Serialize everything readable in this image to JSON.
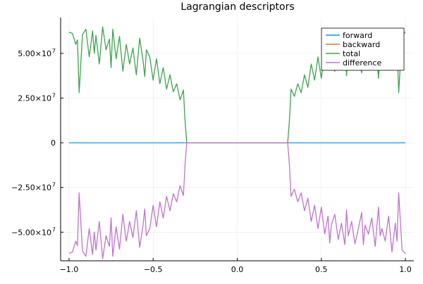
{
  "chart_data": {
    "type": "line",
    "title": "Lagrangian descriptors",
    "xlabel": "",
    "ylabel": "",
    "xlim": [
      -1.05,
      1.05
    ],
    "ylim": [
      -66000000,
      70000000
    ],
    "grid": true,
    "legend_position": "top-right",
    "x_ticks": [
      {
        "value": -1.0,
        "label": "−1.0"
      },
      {
        "value": -0.5,
        "label": "−0.5"
      },
      {
        "value": 0.0,
        "label": "0.0"
      },
      {
        "value": 0.5,
        "label": "0.5"
      },
      {
        "value": 1.0,
        "label": "1.0"
      }
    ],
    "y_ticks": [
      {
        "value": 50000000,
        "base": "5.00×10",
        "exp": "7"
      },
      {
        "value": 25000000,
        "base": "2.50×10",
        "exp": "7"
      },
      {
        "value": 0,
        "base": "0",
        "exp": ""
      },
      {
        "value": -25000000,
        "base": "−2.50×10",
        "exp": "7"
      },
      {
        "value": -50000000,
        "base": "−5.00×10",
        "exp": "7"
      }
    ],
    "series": [
      {
        "name": "forward",
        "color": "#009af9",
        "x": [
          -1.0,
          1.0
        ],
        "y": [
          0,
          0
        ]
      },
      {
        "name": "backward",
        "color": "#e26f46",
        "x": [
          -0.31,
          0.31
        ],
        "y": [
          0,
          0
        ]
      },
      {
        "name": "total",
        "color": "#3da44d",
        "x": [
          -1.0,
          -0.98,
          -0.96,
          -0.95,
          -0.94,
          -0.92,
          -0.9,
          -0.88,
          -0.86,
          -0.85,
          -0.84,
          -0.82,
          -0.8,
          -0.78,
          -0.76,
          -0.75,
          -0.74,
          -0.72,
          -0.7,
          -0.68,
          -0.66,
          -0.65,
          -0.64,
          -0.62,
          -0.6,
          -0.58,
          -0.56,
          -0.55,
          -0.54,
          -0.52,
          -0.5,
          -0.48,
          -0.46,
          -0.44,
          -0.42,
          -0.4,
          -0.38,
          -0.36,
          -0.34,
          -0.32,
          -0.31,
          -0.3,
          0.3,
          0.31,
          0.32,
          0.34,
          0.36,
          0.38,
          0.4,
          0.42,
          0.44,
          0.46,
          0.48,
          0.5,
          0.52,
          0.54,
          0.55,
          0.56,
          0.58,
          0.6,
          0.62,
          0.64,
          0.65,
          0.66,
          0.68,
          0.7,
          0.72,
          0.74,
          0.75,
          0.76,
          0.78,
          0.8,
          0.82,
          0.84,
          0.85,
          0.86,
          0.88,
          0.9,
          0.92,
          0.94,
          0.95,
          0.96,
          0.98,
          1.0
        ],
        "y": [
          61800000,
          61200000,
          55000000,
          57500000,
          28000000,
          60500000,
          63500000,
          48000000,
          62500000,
          50000000,
          60000000,
          44000000,
          64800000,
          52000000,
          58000000,
          42000000,
          63500000,
          47000000,
          59500000,
          40000000,
          55000000,
          50000000,
          44000000,
          53000000,
          38000000,
          58500000,
          46000000,
          37000000,
          52000000,
          48000000,
          35000000,
          47000000,
          33000000,
          42000000,
          30000000,
          38000000,
          28500000,
          33000000,
          24000000,
          29500000,
          12000000,
          0,
          0,
          12000000,
          30000000,
          26000000,
          33000000,
          28000000,
          38000000,
          31000000,
          44000000,
          35000000,
          48000000,
          36000000,
          51000000,
          41000000,
          56000000,
          46000000,
          40000000,
          54000000,
          45000000,
          57000000,
          37500000,
          52000000,
          44000000,
          56500000,
          48000000,
          39000000,
          57000000,
          46000000,
          51000000,
          42000000,
          58000000,
          36000000,
          52000000,
          48000000,
          55000000,
          41000000,
          61000000,
          45000000,
          55000000,
          28000000,
          60000000,
          62000000
        ]
      },
      {
        "name": "difference",
        "color": "#c271d2",
        "x": [
          -1.0,
          -0.98,
          -0.96,
          -0.95,
          -0.94,
          -0.92,
          -0.9,
          -0.88,
          -0.86,
          -0.85,
          -0.84,
          -0.82,
          -0.8,
          -0.78,
          -0.76,
          -0.75,
          -0.74,
          -0.72,
          -0.7,
          -0.68,
          -0.66,
          -0.65,
          -0.64,
          -0.62,
          -0.6,
          -0.58,
          -0.56,
          -0.55,
          -0.54,
          -0.52,
          -0.5,
          -0.48,
          -0.46,
          -0.44,
          -0.42,
          -0.4,
          -0.38,
          -0.36,
          -0.34,
          -0.32,
          -0.31,
          -0.3,
          0.3,
          0.31,
          0.32,
          0.34,
          0.36,
          0.38,
          0.4,
          0.42,
          0.44,
          0.46,
          0.48,
          0.5,
          0.52,
          0.54,
          0.55,
          0.56,
          0.58,
          0.6,
          0.62,
          0.64,
          0.65,
          0.66,
          0.68,
          0.7,
          0.72,
          0.74,
          0.75,
          0.76,
          0.78,
          0.8,
          0.82,
          0.84,
          0.85,
          0.86,
          0.88,
          0.9,
          0.92,
          0.94,
          0.95,
          0.96,
          0.98,
          1.0
        ],
        "y": [
          -61800000,
          -61200000,
          -55000000,
          -57500000,
          -28000000,
          -60500000,
          -63500000,
          -48000000,
          -62500000,
          -50000000,
          -60000000,
          -44000000,
          -64800000,
          -52000000,
          -58000000,
          -42000000,
          -63500000,
          -47000000,
          -59500000,
          -40000000,
          -55000000,
          -50000000,
          -44000000,
          -53000000,
          -38000000,
          -58500000,
          -46000000,
          -37000000,
          -52000000,
          -48000000,
          -35000000,
          -47000000,
          -33000000,
          -42000000,
          -30000000,
          -38000000,
          -28500000,
          -33000000,
          -24000000,
          -29500000,
          -12000000,
          0,
          0,
          -12000000,
          -30000000,
          -26000000,
          -33000000,
          -28000000,
          -38000000,
          -31000000,
          -44000000,
          -35000000,
          -48000000,
          -36000000,
          -51000000,
          -41000000,
          -56000000,
          -46000000,
          -40000000,
          -54000000,
          -45000000,
          -57000000,
          -37500000,
          -52000000,
          -44000000,
          -56500000,
          -48000000,
          -39000000,
          -57000000,
          -46000000,
          -51000000,
          -42000000,
          -58000000,
          -36000000,
          -52000000,
          -48000000,
          -55000000,
          -41000000,
          -61000000,
          -45000000,
          -55000000,
          -28000000,
          -60000000,
          -62000000
        ]
      }
    ]
  }
}
